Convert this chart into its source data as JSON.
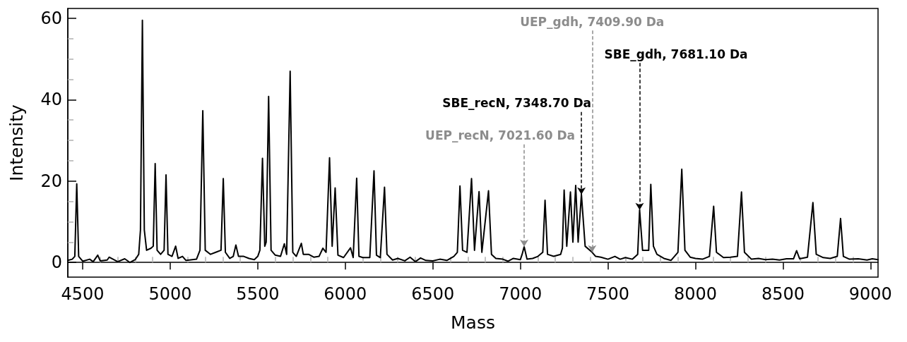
{
  "chart_data": {
    "type": "line",
    "xlabel": "Mass",
    "ylabel": "Intensity",
    "xlim": [
      4415,
      9043
    ],
    "ylim": [
      -3.6,
      62.4
    ],
    "xticks": [
      4500,
      5000,
      5500,
      6000,
      6500,
      7000,
      7500,
      8000,
      8500,
      9000
    ],
    "yticks": [
      0,
      20,
      40,
      60
    ],
    "marker": "none",
    "line_style": "solid",
    "series": [
      {
        "color": "#000000",
        "x": [
          4415,
          4440,
          4455,
          4466,
          4477,
          4500,
          4540,
          4560,
          4586,
          4600,
          4640,
          4651,
          4700,
          4740,
          4770,
          4800,
          4820,
          4830,
          4841,
          4852,
          4865,
          4890,
          4903,
          4914,
          4925,
          4945,
          4965,
          4976,
          4987,
          5010,
          5031,
          5045,
          5070,
          5090,
          5110,
          5150,
          5170,
          5186,
          5200,
          5230,
          5260,
          5290,
          5303,
          5315,
          5340,
          5360,
          5375,
          5390,
          5420,
          5450,
          5480,
          5500,
          5512,
          5527,
          5540,
          5548,
          5562,
          5576,
          5600,
          5630,
          5652,
          5665,
          5685,
          5700,
          5720,
          5749,
          5760,
          5790,
          5820,
          5850,
          5872,
          5890,
          5910,
          5925,
          5942,
          5958,
          5990,
          6030,
          6045,
          6065,
          6078,
          6100,
          6140,
          6164,
          6178,
          6200,
          6224,
          6238,
          6270,
          6300,
          6340,
          6370,
          6400,
          6430,
          6460,
          6500,
          6540,
          6580,
          6620,
          6640,
          6655,
          6670,
          6695,
          6721,
          6738,
          6764,
          6780,
          6818,
          6835,
          6860,
          6900,
          6930,
          6960,
          7000,
          7010,
          7021.6,
          7038,
          7070,
          7100,
          7128,
          7141,
          7155,
          7190,
          7230,
          7240,
          7250,
          7265,
          7286,
          7300,
          7316,
          7330,
          7348.7,
          7370,
          7409.9,
          7430,
          7460,
          7500,
          7540,
          7570,
          7600,
          7640,
          7670,
          7681.1,
          7698,
          7733,
          7745,
          7760,
          7780,
          7820,
          7860,
          7900,
          7922,
          7940,
          7970,
          8000,
          8040,
          8080,
          8104,
          8120,
          8160,
          8200,
          8240,
          8263,
          8280,
          8320,
          8360,
          8400,
          8440,
          8480,
          8520,
          8560,
          8578,
          8595,
          8640,
          8671,
          8690,
          8730,
          8770,
          8810,
          8829,
          8845,
          8880,
          8930,
          8980,
          9010,
          9043
        ],
        "values": [
          0.5,
          0.8,
          1.5,
          19.3,
          1.5,
          0.3,
          0.8,
          0.2,
          1.8,
          0.4,
          0.6,
          1.3,
          0.2,
          0.9,
          0.0,
          0.7,
          2,
          8,
          59.5,
          8,
          3,
          3.5,
          4,
          24.3,
          3,
          2,
          3,
          21.5,
          2,
          1.5,
          4,
          1,
          1.5,
          0.5,
          0.6,
          0.8,
          3,
          37.3,
          3,
          2,
          2.5,
          3,
          20.6,
          2.5,
          1,
          1.5,
          4.3,
          1.5,
          1.5,
          1,
          0.7,
          1.5,
          3,
          25.6,
          4,
          5,
          40.8,
          3,
          1.8,
          1.5,
          4.6,
          2,
          47,
          2.5,
          1.5,
          4.7,
          2,
          2,
          1.3,
          1.5,
          3.5,
          2.5,
          25.7,
          4,
          18.3,
          1.8,
          1.2,
          3.6,
          1.2,
          20.7,
          1.5,
          1.2,
          1.2,
          22.5,
          1.8,
          1.2,
          18.5,
          2,
          0.6,
          1,
          0.4,
          1.3,
          0.2,
          1.1,
          0.5,
          0.4,
          0.8,
          0.5,
          1.5,
          2.5,
          18.8,
          3,
          2.5,
          20.6,
          3,
          17.4,
          2.5,
          17.6,
          2,
          1,
          0.8,
          0.3,
          1,
          0.7,
          2,
          3.9,
          0.8,
          1,
          1.5,
          2.5,
          15.3,
          2,
          1.5,
          2,
          3.5,
          17.8,
          4,
          17.3,
          5,
          18.9,
          5,
          16.7,
          4,
          2.5,
          1.5,
          1.3,
          0.8,
          1.5,
          0.8,
          1.2,
          0.8,
          2,
          12.9,
          3,
          3,
          19.2,
          4,
          2,
          1,
          0.5,
          2.5,
          22.9,
          3,
          1.3,
          1,
          0.8,
          1.5,
          13.8,
          2.5,
          1.2,
          1.3,
          1.5,
          17.3,
          2.5,
          0.8,
          1,
          0.7,
          0.8,
          0.6,
          0.9,
          0.9,
          2.9,
          0.9,
          1.3,
          14.7,
          2,
          1.2,
          1,
          1.5,
          10.8,
          1.5,
          0.8,
          0.9,
          0.6,
          0.9,
          0.7
        ]
      }
    ],
    "annotations": [
      {
        "text": "UEP_recN, 7021.60 Da",
        "x": 7021.6,
        "y": 3.9
      },
      {
        "text": "SBE_recN, 7348.70 Da",
        "x": 7348.7,
        "y": 16.7
      },
      {
        "text": "UEP_gdh, 7409.90 Da",
        "x": 7409.9,
        "y": 2.5
      },
      {
        "text": "SBE_gdh, 7681.10 Da",
        "x": 7681.1,
        "y": 12.9
      }
    ]
  }
}
